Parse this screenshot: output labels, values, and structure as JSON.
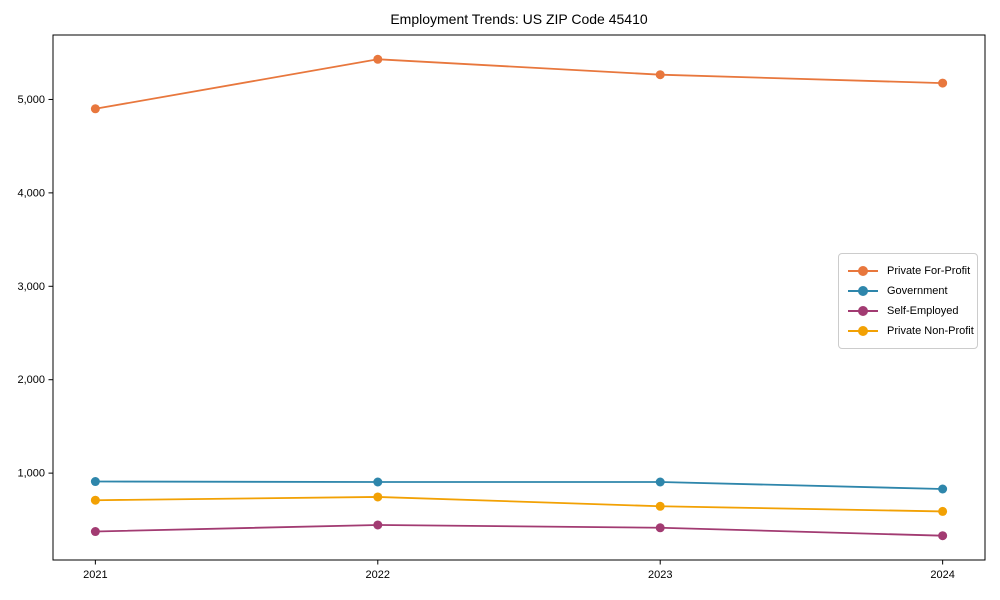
{
  "chart_data": {
    "type": "line",
    "title": "Employment Trends: US ZIP Code 45410",
    "x": [
      2021,
      2022,
      2023,
      2024
    ],
    "xtick_labels": [
      "2021",
      "2022",
      "2023",
      "2024"
    ],
    "ytick_values": [
      1000,
      2000,
      3000,
      4000,
      5000
    ],
    "ytick_labels": [
      "1,000",
      "2,000",
      "3,000",
      "4,000",
      "5,000"
    ],
    "xlim": [
      2020.85,
      2024.15
    ],
    "ylim": [
      70,
      5690
    ],
    "grid": false,
    "legend_position": "center-right",
    "axis_color": "#000000",
    "background_color": "#ffffff",
    "series": [
      {
        "name": "Private For-Profit",
        "color": "#E8773D",
        "values": [
          4900,
          5430,
          5265,
          5175
        ]
      },
      {
        "name": "Government",
        "color": "#2E86AB",
        "values": [
          910,
          905,
          905,
          830
        ]
      },
      {
        "name": "Self-Employed",
        "color": "#A23B72",
        "values": [
          375,
          445,
          415,
          330
        ]
      },
      {
        "name": "Private Non-Profit",
        "color": "#F2A104",
        "values": [
          710,
          745,
          645,
          590
        ]
      }
    ]
  }
}
